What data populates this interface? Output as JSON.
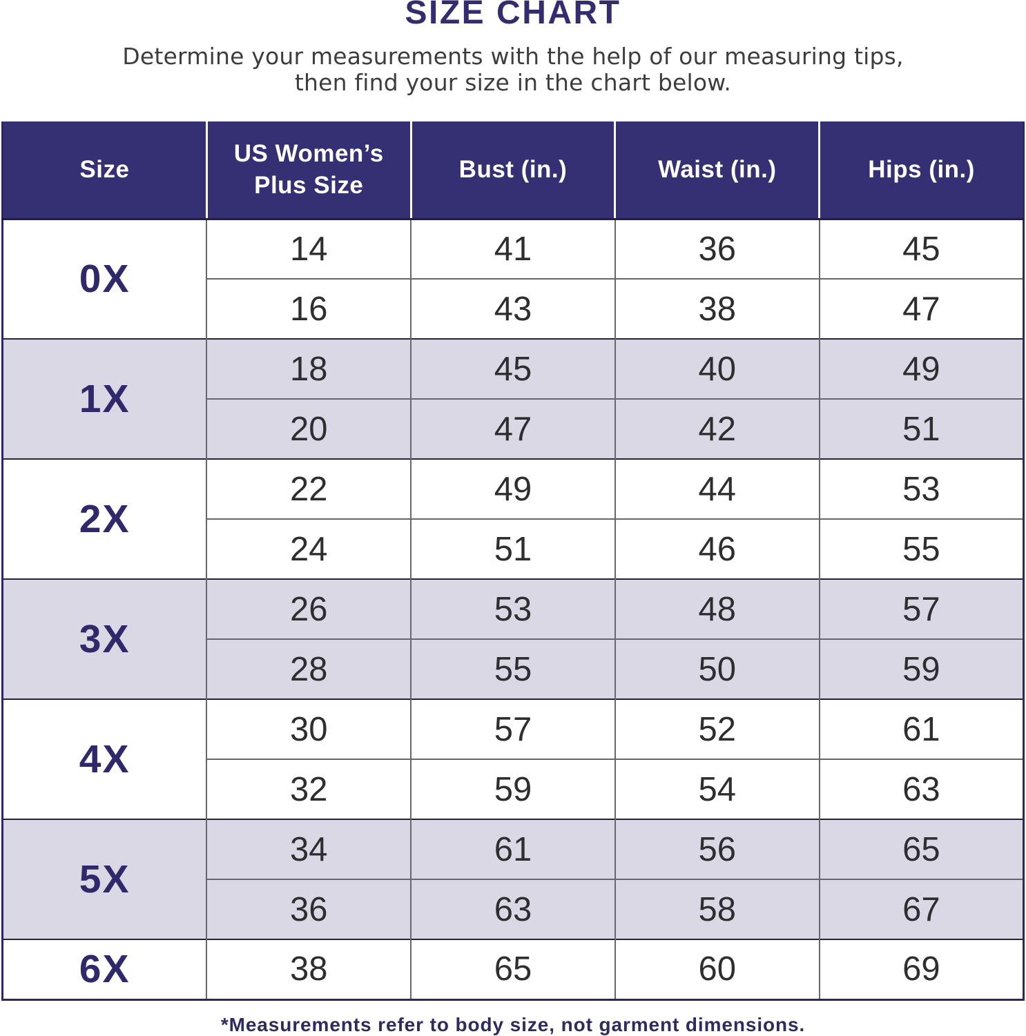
{
  "title": "SIZE CHART",
  "subtitle": {
    "line1": "Determine your measurements with the help of our measuring tips,",
    "line2": "then find your size in the chart below."
  },
  "footnote": "*Measurements refer to body size, not garment dimensions.",
  "colors": {
    "header_background": "#352f73",
    "header_text": "#ffffff",
    "title_text": "#332c6f",
    "size_label_text": "#2f296b",
    "shaded_row": "#dbd8e6",
    "number_text": "#2e2d2f",
    "inner_divider": "#68666c",
    "group_boundary": "#262233",
    "outer_border": "#2d2760"
  },
  "chart_data": {
    "type": "table",
    "title": "SIZE CHART",
    "columns": [
      "Size",
      "US Women’s\nPlus Size",
      "Bust (in.)",
      "Waist (in.)",
      "Hips (in.)"
    ],
    "groups": [
      {
        "size": "0X",
        "shaded": false,
        "rows": [
          [
            "14",
            "41",
            "36",
            "45"
          ],
          [
            "16",
            "43",
            "38",
            "47"
          ]
        ]
      },
      {
        "size": "1X",
        "shaded": true,
        "rows": [
          [
            "18",
            "45",
            "40",
            "49"
          ],
          [
            "20",
            "47",
            "42",
            "51"
          ]
        ]
      },
      {
        "size": "2X",
        "shaded": false,
        "rows": [
          [
            "22",
            "49",
            "44",
            "53"
          ],
          [
            "24",
            "51",
            "46",
            "55"
          ]
        ]
      },
      {
        "size": "3X",
        "shaded": true,
        "rows": [
          [
            "26",
            "53",
            "48",
            "57"
          ],
          [
            "28",
            "55",
            "50",
            "59"
          ]
        ]
      },
      {
        "size": "4X",
        "shaded": false,
        "rows": [
          [
            "30",
            "57",
            "52",
            "61"
          ],
          [
            "32",
            "59",
            "54",
            "63"
          ]
        ]
      },
      {
        "size": "5X",
        "shaded": true,
        "rows": [
          [
            "34",
            "61",
            "56",
            "65"
          ],
          [
            "36",
            "63",
            "58",
            "67"
          ]
        ]
      },
      {
        "size": "6X",
        "shaded": false,
        "rows": [
          [
            "38",
            "65",
            "60",
            "69"
          ]
        ]
      }
    ]
  }
}
